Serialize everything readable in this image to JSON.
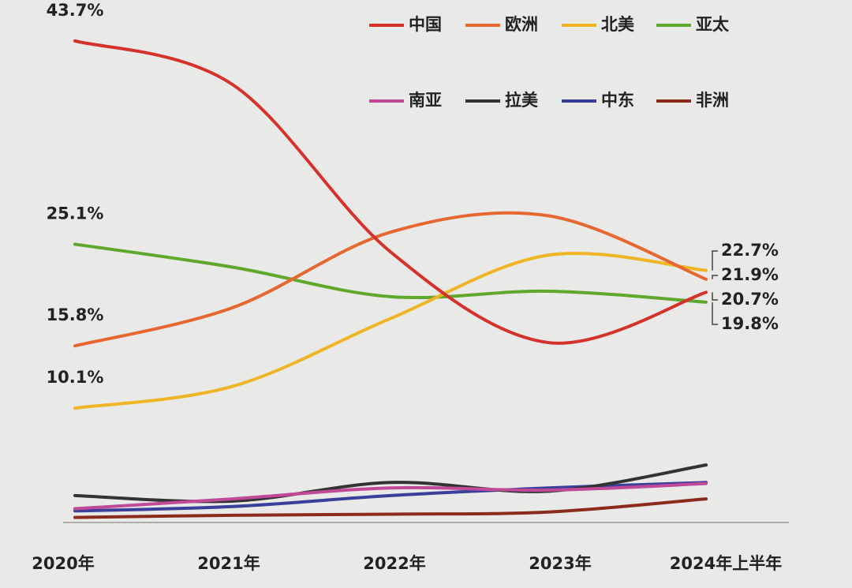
{
  "chart_data": {
    "type": "line",
    "categories": [
      "2020年",
      "2021年",
      "2022年",
      "2023年",
      "2024年上半年"
    ],
    "ylim": [
      0,
      46
    ],
    "series": [
      {
        "name": "中国",
        "color": "#d4322b",
        "values": [
          43.7,
          39.7,
          24.4,
          16.1,
          20.7
        ],
        "value_labels": [
          "43.7%",
          null,
          null,
          null,
          "20.7%"
        ]
      },
      {
        "name": "欧洲",
        "color": "#e6672f",
        "values": [
          15.8,
          19.3,
          26.2,
          27.7,
          21.9
        ],
        "value_labels": [
          "15.8%",
          null,
          null,
          null,
          "21.9%"
        ]
      },
      {
        "name": "北美",
        "color": "#efb525",
        "values": [
          10.1,
          12.1,
          18.3,
          24.1,
          22.7
        ],
        "value_labels": [
          "10.1%",
          null,
          null,
          null,
          "22.7%"
        ]
      },
      {
        "name": "亚太",
        "color": "#5ea82b",
        "values": [
          25.1,
          23.0,
          20.3,
          20.8,
          19.8
        ],
        "value_labels": [
          "25.1%",
          null,
          null,
          null,
          "19.8%"
        ]
      },
      {
        "name": "南亚",
        "color": "#c04a98",
        "values": [
          0.9,
          1.8,
          2.8,
          2.6,
          3.2
        ]
      },
      {
        "name": "拉美",
        "color": "#333333",
        "values": [
          2.1,
          1.6,
          3.3,
          2.5,
          4.9
        ]
      },
      {
        "name": "中东",
        "color": "#3a3f9a",
        "values": [
          0.7,
          1.1,
          2.1,
          2.8,
          3.3
        ]
      },
      {
        "name": "非洲",
        "color": "#8a2b1c",
        "values": [
          0.1,
          0.3,
          0.4,
          0.6,
          1.8
        ]
      }
    ]
  }
}
